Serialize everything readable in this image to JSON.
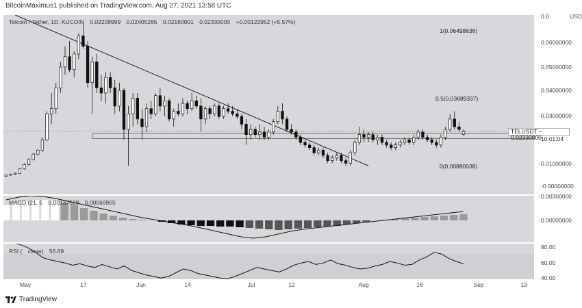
{
  "header": {
    "text": "BitcoinMaximus1 published on TradingView.com, Aug 27, 2021 13:58 UTC"
  },
  "main_legend": {
    "pair": "Telcoin / Tether, 1D, KUCOIN",
    "open": "0.02209999",
    "high": "0.02405265",
    "low": "0.02160001",
    "close": "0.02330000",
    "change": "+0.00122952 (+5.57%)"
  },
  "currency_label": "USDT",
  "price_axis": [
    "0.0",
    "0.06000000",
    "0.05000000",
    "0.04000000",
    "0.03000000",
    "0.01000000",
    "-0.00000000"
  ],
  "fib_levels": [
    {
      "label": "1(0.06498636)",
      "value": 0.06498636
    },
    {
      "label": "0.5(0.03689337)",
      "value": 0.03689337
    },
    {
      "label": "0(0.00880038)",
      "value": 0.00880038
    }
  ],
  "current_price": {
    "symbol": "TELUSDT",
    "value": "0.02330000",
    "countdown": "10:01:04"
  },
  "macd": {
    "label": "MACD (21, 5",
    "v1": "0.00137628",
    "v2": "0.00069905",
    "axis_top": "0.00300000",
    "axis_zero": "0.00000000"
  },
  "rsi": {
    "label": "RSI (",
    "close_label": "close)",
    "value": "56.69",
    "axis": [
      "80.00",
      "60.00",
      "40.00"
    ]
  },
  "x_axis": [
    "May",
    "17",
    "Jun",
    "14",
    "Jul",
    "12",
    "Aug",
    "16",
    "Sep",
    "13"
  ],
  "footer": {
    "brand": "TradingView"
  },
  "colors": {
    "panel_bg": "#d8d8dc",
    "candle_up": "#ffffff",
    "candle_down": "#111111",
    "line": "#222222"
  },
  "chart_data": {
    "type": "candlestick",
    "title": "Telcoin / Tether, 1D, KUCOIN",
    "ylim": [
      -0.001,
      0.068
    ],
    "candles": [
      [
        0.006,
        0.0066,
        0.0058,
        0.0064
      ],
      [
        0.0064,
        0.007,
        0.0062,
        0.0068
      ],
      [
        0.0068,
        0.0074,
        0.0066,
        0.0071
      ],
      [
        0.0071,
        0.009,
        0.007,
        0.0088
      ],
      [
        0.0088,
        0.011,
        0.0085,
        0.0105
      ],
      [
        0.0105,
        0.013,
        0.01,
        0.0125
      ],
      [
        0.0125,
        0.015,
        0.012,
        0.0145
      ],
      [
        0.0145,
        0.0165,
        0.014,
        0.016
      ],
      [
        0.016,
        0.021,
        0.0155,
        0.02
      ],
      [
        0.02,
        0.031,
        0.0195,
        0.03
      ],
      [
        0.03,
        0.038,
        0.026,
        0.032
      ],
      [
        0.032,
        0.042,
        0.03,
        0.04
      ],
      [
        0.04,
        0.05,
        0.038,
        0.048
      ],
      [
        0.048,
        0.056,
        0.045,
        0.052
      ],
      [
        0.052,
        0.058,
        0.046,
        0.047
      ],
      [
        0.047,
        0.054,
        0.044,
        0.053
      ],
      [
        0.053,
        0.061,
        0.051,
        0.06
      ],
      [
        0.06,
        0.065,
        0.055,
        0.056
      ],
      [
        0.056,
        0.058,
        0.04,
        0.042
      ],
      [
        0.042,
        0.052,
        0.03,
        0.05
      ],
      [
        0.05,
        0.053,
        0.038,
        0.04
      ],
      [
        0.04,
        0.045,
        0.035,
        0.038
      ],
      [
        0.038,
        0.046,
        0.034,
        0.044
      ],
      [
        0.044,
        0.046,
        0.038,
        0.04
      ],
      [
        0.04,
        0.043,
        0.03,
        0.033
      ],
      [
        0.033,
        0.042,
        0.031,
        0.039
      ],
      [
        0.039,
        0.04,
        0.02,
        0.024
      ],
      [
        0.024,
        0.033,
        0.01,
        0.03
      ],
      [
        0.03,
        0.038,
        0.025,
        0.036
      ],
      [
        0.036,
        0.038,
        0.026,
        0.028
      ],
      [
        0.028,
        0.032,
        0.02,
        0.025
      ],
      [
        0.025,
        0.034,
        0.023,
        0.032
      ],
      [
        0.032,
        0.035,
        0.028,
        0.03
      ],
      [
        0.03,
        0.038,
        0.029,
        0.037
      ],
      [
        0.037,
        0.04,
        0.031,
        0.033
      ],
      [
        0.033,
        0.037,
        0.029,
        0.035
      ],
      [
        0.035,
        0.036,
        0.027,
        0.028
      ],
      [
        0.028,
        0.032,
        0.025,
        0.031
      ],
      [
        0.031,
        0.034,
        0.029,
        0.03
      ],
      [
        0.03,
        0.036,
        0.029,
        0.034
      ],
      [
        0.034,
        0.035,
        0.03,
        0.032
      ],
      [
        0.032,
        0.038,
        0.031,
        0.035
      ],
      [
        0.035,
        0.037,
        0.032,
        0.033
      ],
      [
        0.033,
        0.036,
        0.023,
        0.028
      ],
      [
        0.028,
        0.033,
        0.026,
        0.032
      ],
      [
        0.032,
        0.033,
        0.028,
        0.03
      ],
      [
        0.03,
        0.034,
        0.029,
        0.033
      ],
      [
        0.033,
        0.034,
        0.028,
        0.029
      ],
      [
        0.029,
        0.033,
        0.028,
        0.032
      ],
      [
        0.032,
        0.034,
        0.03,
        0.031
      ],
      [
        0.031,
        0.033,
        0.029,
        0.03
      ],
      [
        0.03,
        0.032,
        0.028,
        0.029
      ],
      [
        0.029,
        0.03,
        0.024,
        0.026
      ],
      [
        0.026,
        0.028,
        0.018,
        0.022
      ],
      [
        0.022,
        0.026,
        0.02,
        0.024
      ],
      [
        0.024,
        0.025,
        0.021,
        0.022
      ],
      [
        0.022,
        0.026,
        0.02,
        0.023
      ],
      [
        0.023,
        0.025,
        0.02,
        0.021
      ],
      [
        0.021,
        0.024,
        0.02,
        0.023
      ],
      [
        0.023,
        0.028,
        0.022,
        0.027
      ],
      [
        0.027,
        0.033,
        0.026,
        0.031
      ],
      [
        0.031,
        0.034,
        0.026,
        0.028
      ],
      [
        0.028,
        0.029,
        0.023,
        0.024
      ],
      [
        0.024,
        0.026,
        0.022,
        0.023
      ],
      [
        0.023,
        0.024,
        0.02,
        0.021
      ],
      [
        0.021,
        0.022,
        0.018,
        0.019
      ],
      [
        0.019,
        0.02,
        0.017,
        0.018
      ],
      [
        0.018,
        0.019,
        0.016,
        0.017
      ],
      [
        0.017,
        0.018,
        0.014,
        0.015
      ],
      [
        0.015,
        0.017,
        0.014,
        0.016
      ],
      [
        0.016,
        0.017,
        0.013,
        0.014
      ],
      [
        0.014,
        0.015,
        0.011,
        0.012
      ],
      [
        0.012,
        0.014,
        0.011,
        0.013
      ],
      [
        0.013,
        0.015,
        0.012,
        0.014
      ],
      [
        0.014,
        0.015,
        0.011,
        0.012
      ],
      [
        0.012,
        0.013,
        0.01,
        0.011
      ],
      [
        0.011,
        0.016,
        0.01,
        0.015
      ],
      [
        0.015,
        0.02,
        0.014,
        0.019
      ],
      [
        0.019,
        0.025,
        0.018,
        0.022
      ],
      [
        0.022,
        0.024,
        0.019,
        0.021
      ],
      [
        0.021,
        0.023,
        0.019,
        0.022
      ],
      [
        0.022,
        0.023,
        0.019,
        0.02
      ],
      [
        0.02,
        0.022,
        0.018,
        0.021
      ],
      [
        0.021,
        0.022,
        0.018,
        0.019
      ],
      [
        0.019,
        0.02,
        0.017,
        0.018
      ],
      [
        0.018,
        0.019,
        0.016,
        0.017
      ],
      [
        0.017,
        0.019,
        0.016,
        0.018
      ],
      [
        0.018,
        0.02,
        0.017,
        0.019
      ],
      [
        0.019,
        0.021,
        0.018,
        0.02
      ],
      [
        0.02,
        0.021,
        0.018,
        0.019
      ],
      [
        0.019,
        0.022,
        0.018,
        0.021
      ],
      [
        0.021,
        0.024,
        0.02,
        0.023
      ],
      [
        0.023,
        0.024,
        0.02,
        0.021
      ],
      [
        0.021,
        0.022,
        0.019,
        0.02
      ],
      [
        0.02,
        0.021,
        0.018,
        0.019
      ],
      [
        0.019,
        0.02,
        0.017,
        0.018
      ],
      [
        0.018,
        0.022,
        0.017,
        0.021
      ],
      [
        0.021,
        0.025,
        0.02,
        0.024
      ],
      [
        0.024,
        0.03,
        0.023,
        0.028
      ],
      [
        0.028,
        0.031,
        0.024,
        0.025
      ],
      [
        0.025,
        0.027,
        0.023,
        0.024
      ],
      [
        0.0221,
        0.0241,
        0.0216,
        0.0233
      ]
    ],
    "trendline": [
      [
        2,
        0.068
      ],
      [
        80,
        0.01
      ]
    ],
    "support_band": [
      0.0205,
      0.0225
    ],
    "macd_hist": [
      0.0022,
      0.0025,
      0.0028,
      0.003,
      0.003,
      0.0029,
      0.0026,
      0.0022,
      0.0018,
      0.0014,
      0.001,
      0.0007,
      0.0004,
      0.0002,
      0.0001,
      0.0,
      -0.0002,
      -0.0004,
      -0.0006,
      -0.0007,
      -0.0008,
      -0.0008,
      -0.0009,
      -0.0009,
      -0.001,
      -0.0011,
      -0.0012,
      -0.0013,
      -0.0014,
      -0.0013,
      -0.0012,
      -0.0011,
      -0.001,
      -0.0009,
      -0.0008,
      -0.0006,
      -0.0004,
      -0.0002,
      0.0,
      0.0001,
      0.0002,
      0.0003,
      0.0004,
      0.0005,
      0.0006,
      0.0007,
      0.0008,
      0.0009
    ],
    "macd_line": [
      0.003,
      0.0034,
      0.0036,
      0.0035,
      0.0032,
      0.0028,
      0.0024,
      0.002,
      0.0016,
      0.0012,
      0.0008,
      0.0004,
      0.0001,
      -0.0002,
      -0.0005,
      -0.0008,
      -0.0012,
      -0.0016,
      -0.002,
      -0.0024,
      -0.0026,
      -0.0024,
      -0.002,
      -0.0016,
      -0.0013,
      -0.0011,
      -0.0009,
      -0.0007,
      -0.0005,
      -0.0003,
      -0.0001,
      0.0001,
      0.0003,
      0.0005,
      0.0007,
      0.0009,
      0.0011,
      0.0013
    ],
    "rsi": [
      88,
      85,
      82,
      78,
      72,
      65,
      62,
      60,
      58,
      55,
      57,
      54,
      52,
      56,
      53,
      50,
      54,
      48,
      45,
      42,
      40,
      38,
      40,
      45,
      50,
      48,
      44,
      42,
      40,
      38,
      37,
      40,
      44,
      48,
      52,
      50,
      48,
      46,
      50,
      55,
      58,
      60,
      56,
      58,
      62,
      57,
      55,
      52,
      50,
      51,
      54,
      56,
      60,
      58,
      55,
      56,
      62,
      66,
      72,
      70,
      64,
      60,
      57
    ]
  }
}
